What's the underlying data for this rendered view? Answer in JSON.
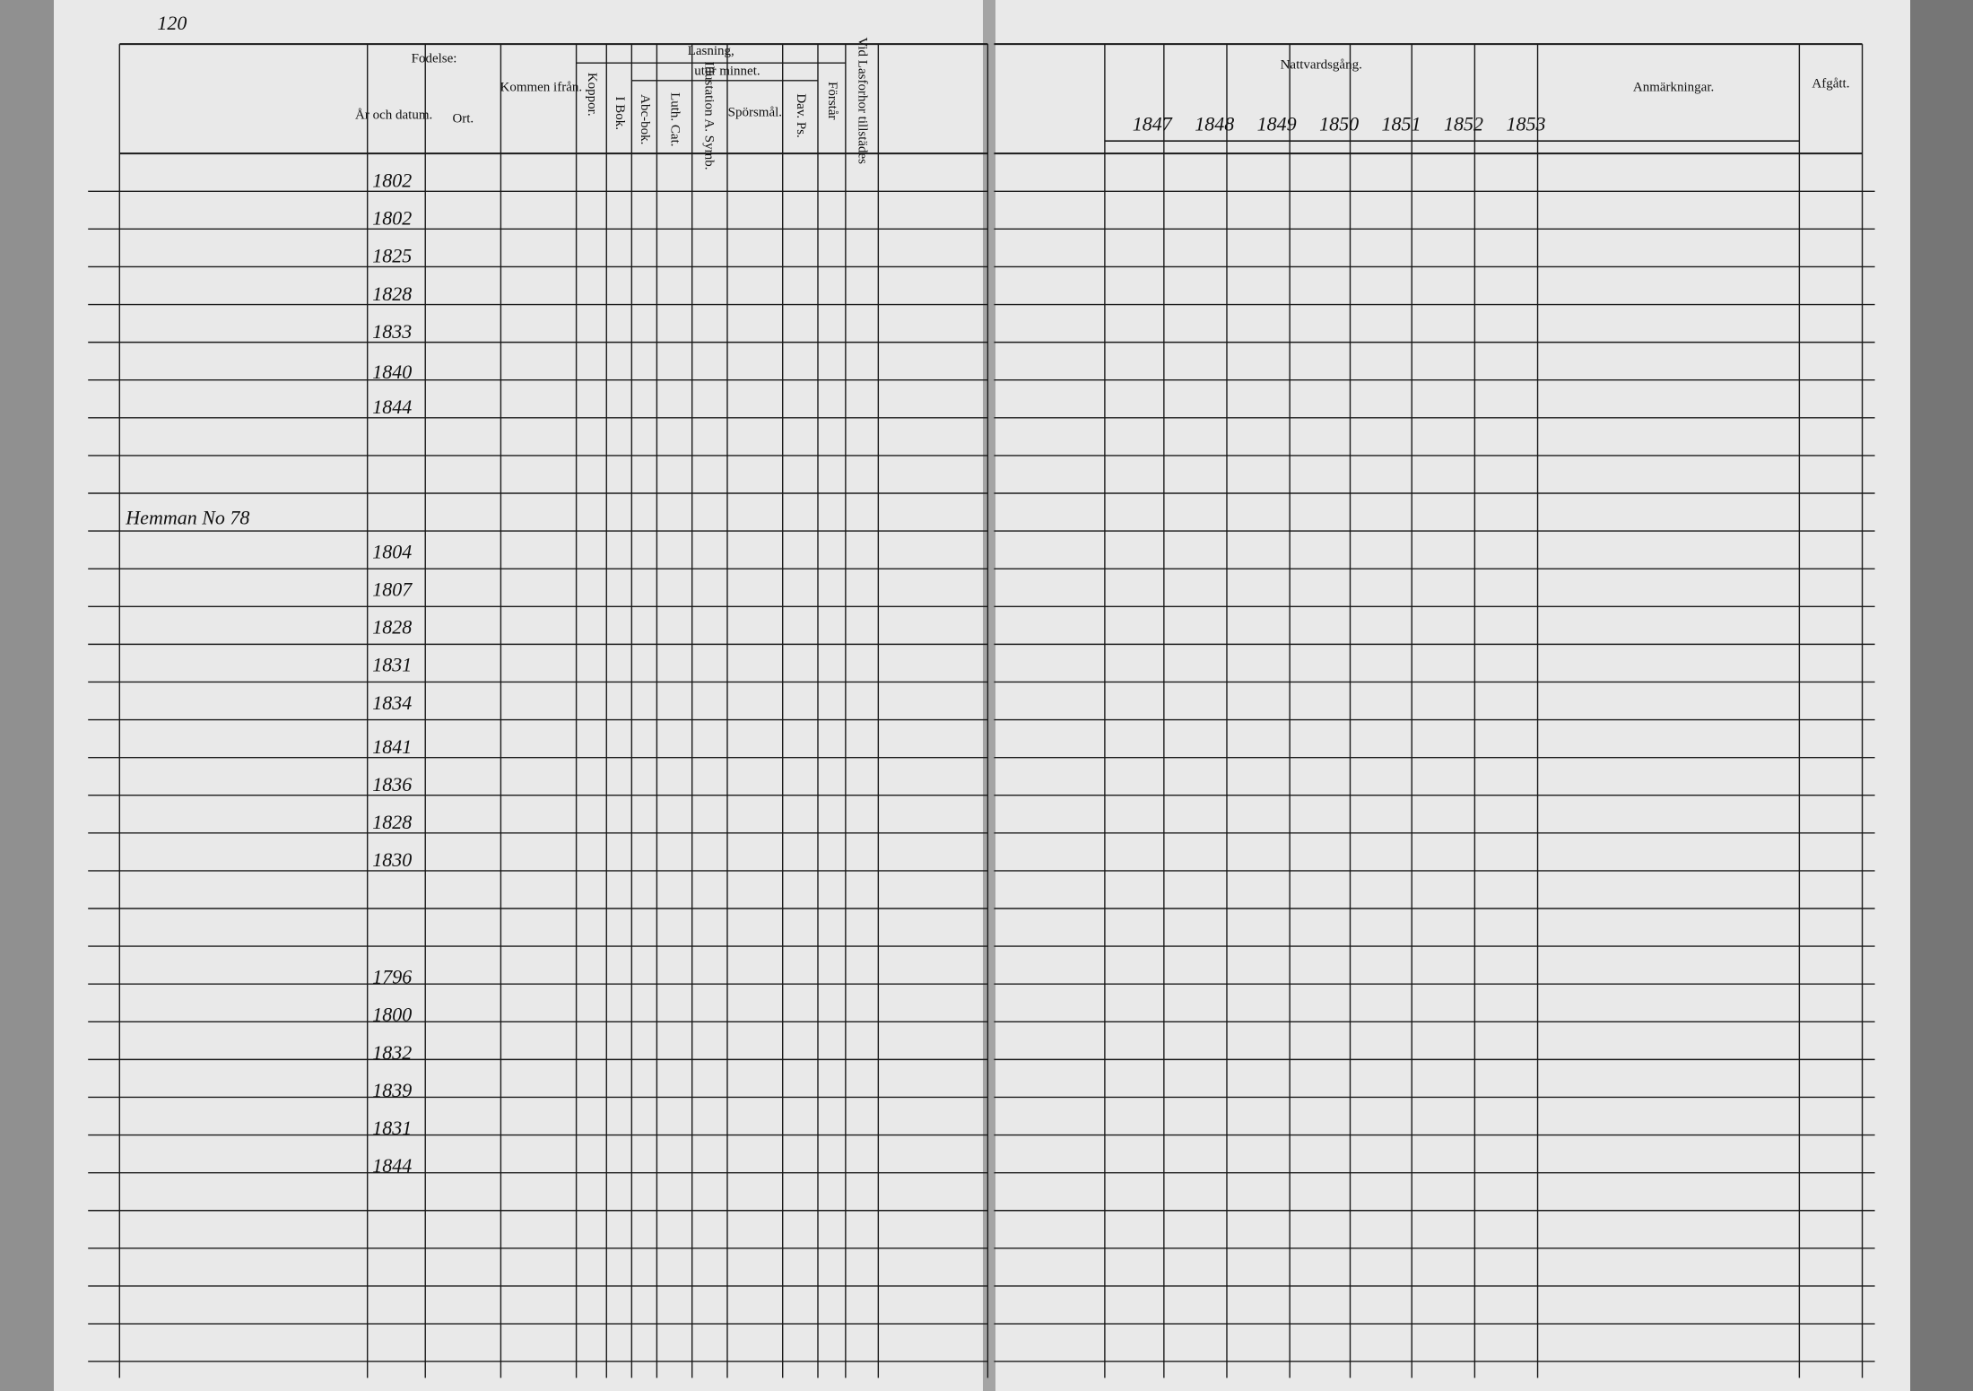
{
  "page_number": "120",
  "left_page": {
    "headers": {
      "birth": "Fodelse:",
      "date": "År och datum.",
      "place": "Ort.",
      "came_from": "Kommen ifrån.",
      "smallpox": "Koppor.",
      "reading": "Lasning,",
      "by_heart": "utur minnet.",
      "in_book": "I Bok.",
      "abc_book": "Abc-bok.",
      "luth_cat": "Luth. Cat.",
      "illustration": "Illustation A. Symb.",
      "questions": "Spörsmål.",
      "dav_ps": "Dav. Ps.",
      "understands": "Förstår",
      "present": "Vid Lasforhor tillstädes"
    },
    "sections": [
      "Hemman No 78"
    ],
    "birth_years": [
      "1802",
      "1802",
      "1825",
      "1828",
      "1833",
      "1840",
      "1844",
      "1804",
      "1807",
      "1828",
      "1831",
      "1834",
      "1841",
      "1836",
      "1828",
      "1830",
      "1796",
      "1800",
      "1832",
      "1839",
      "1831",
      "1844"
    ]
  },
  "right_page": {
    "title": "Nattvardsgång.",
    "years": [
      "1847",
      "1848",
      "1849",
      "1850",
      "1851",
      "1852",
      "1853"
    ],
    "remarks": "Anmärkningar.",
    "departed": "Afgått."
  }
}
